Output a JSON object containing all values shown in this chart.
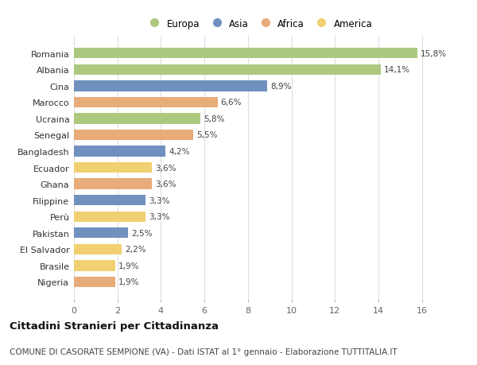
{
  "categories": [
    "Romania",
    "Albania",
    "Cina",
    "Marocco",
    "Ucraina",
    "Senegal",
    "Bangladesh",
    "Ecuador",
    "Ghana",
    "Filippine",
    "Perù",
    "Pakistan",
    "El Salvador",
    "Brasile",
    "Nigeria"
  ],
  "values": [
    15.8,
    14.1,
    8.9,
    6.6,
    5.8,
    5.5,
    4.2,
    3.6,
    3.6,
    3.3,
    3.3,
    2.5,
    2.2,
    1.9,
    1.9
  ],
  "labels": [
    "15,8%",
    "14,1%",
    "8,9%",
    "6,6%",
    "5,8%",
    "5,5%",
    "4,2%",
    "3,6%",
    "3,6%",
    "3,3%",
    "3,3%",
    "2,5%",
    "2,2%",
    "1,9%",
    "1,9%"
  ],
  "continents": [
    "Europa",
    "Europa",
    "Asia",
    "Africa",
    "Europa",
    "Africa",
    "Asia",
    "America",
    "Africa",
    "Asia",
    "America",
    "Asia",
    "America",
    "America",
    "Africa"
  ],
  "colors": {
    "Europa": "#adc97f",
    "Asia": "#7090bf",
    "Africa": "#e8ab7a",
    "America": "#f0d070"
  },
  "legend_order": [
    "Europa",
    "Asia",
    "Africa",
    "America"
  ],
  "xlim": [
    0,
    17
  ],
  "xticks": [
    0,
    2,
    4,
    6,
    8,
    10,
    12,
    14,
    16
  ],
  "title": "Cittadini Stranieri per Cittadinanza",
  "subtitle": "COMUNE DI CASORATE SEMPIONE (VA) - Dati ISTAT al 1° gennaio - Elaborazione TUTTITALIA.IT",
  "bg_color": "#ffffff",
  "plot_bg_color": "#ffffff",
  "title_fontsize": 9.5,
  "subtitle_fontsize": 7.5,
  "label_fontsize": 7.5,
  "tick_fontsize": 8,
  "legend_fontsize": 8.5,
  "bar_height": 0.65,
  "grid_color": "#dddddd",
  "label_color": "#444444",
  "ytick_color": "#333333"
}
